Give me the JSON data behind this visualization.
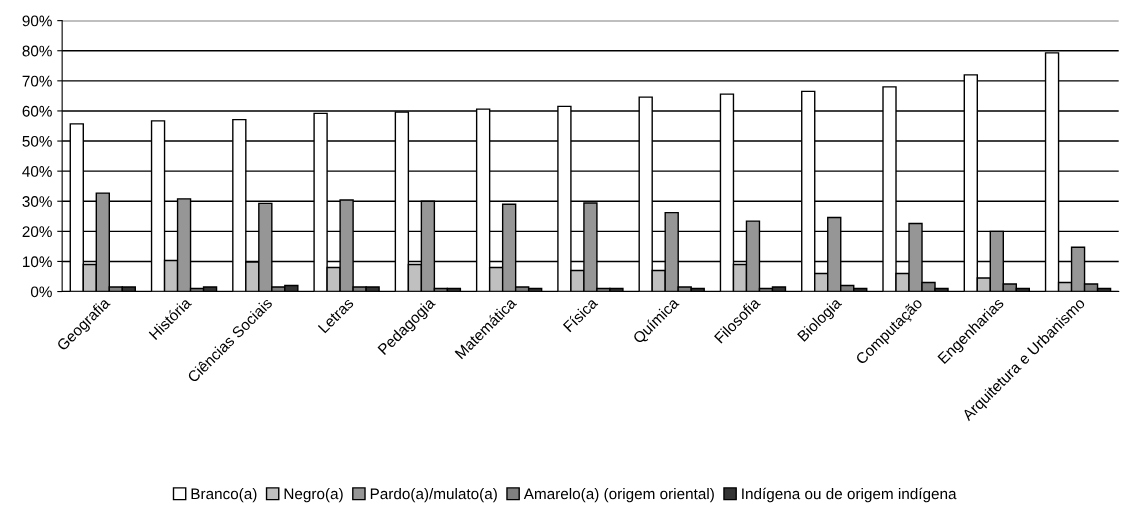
{
  "chart_data": {
    "type": "bar",
    "categories": [
      "Geografia",
      "História",
      "Ciências Sociais",
      "Letras",
      "Pedagogia",
      "Matemática",
      "Física",
      "Química",
      "Filosofia",
      "Biologia",
      "Computação",
      "Engenharias",
      "Arquitetura e Urbanismo"
    ],
    "series": [
      {
        "name": "Branco(a)",
        "color": "#ffffff",
        "values": [
          55.7,
          56.7,
          57.1,
          59.2,
          59.6,
          60.6,
          61.5,
          64.6,
          65.6,
          66.5,
          68,
          72,
          79.3
        ]
      },
      {
        "name": "Negro(a)",
        "color": "#c0c0c0",
        "values": [
          9,
          10.3,
          9.8,
          8,
          9,
          8,
          7,
          7,
          9,
          6,
          6,
          4.5,
          3
        ]
      },
      {
        "name": "Pardo(a)/mulato(a)",
        "color": "#969696",
        "values": [
          32.7,
          30.8,
          29.3,
          30.4,
          30,
          29,
          29.4,
          26.2,
          23.4,
          24.6,
          22.6,
          20,
          14.7
        ]
      },
      {
        "name": "Amarelo(a) (origem oriental)",
        "color": "#808080",
        "values": [
          1.5,
          1,
          1.5,
          1.5,
          1,
          1.5,
          1,
          1.5,
          1,
          2,
          3,
          2.5,
          2.5
        ]
      },
      {
        "name": "Indígena ou de origem indígena",
        "color": "#333333",
        "values": [
          1.5,
          1.5,
          2,
          1.5,
          1,
          1,
          1,
          1,
          1.5,
          1,
          1,
          1,
          1
        ]
      }
    ],
    "ylim": [
      0,
      90
    ],
    "yticks": [
      {
        "value": 0,
        "label": "0%"
      },
      {
        "value": 10,
        "label": "10%"
      },
      {
        "value": 20,
        "label": "20%"
      },
      {
        "value": 30,
        "label": "30%"
      },
      {
        "value": 40,
        "label": "40%"
      },
      {
        "value": 50,
        "label": "50%"
      },
      {
        "value": 60,
        "label": "60%"
      },
      {
        "value": 70,
        "label": "70%"
      },
      {
        "value": 80,
        "label": "80%"
      },
      {
        "value": 90,
        "label": "90%"
      }
    ],
    "grid": "y",
    "legend": "bottom"
  }
}
